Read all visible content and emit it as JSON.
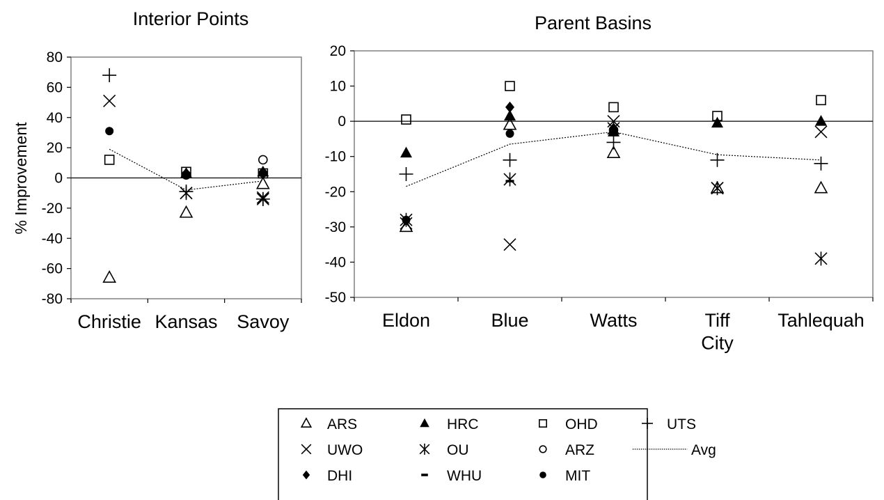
{
  "y_axis_label": "% Improvement",
  "legend": [
    {
      "marker": "open-triangle",
      "label": "ARS"
    },
    {
      "marker": "filled-triangle",
      "label": "HRC"
    },
    {
      "marker": "open-square",
      "label": "OHD"
    },
    {
      "marker": "plus",
      "label": "UTS"
    },
    {
      "marker": "x-cross",
      "label": "UWO"
    },
    {
      "marker": "asterisk",
      "label": "OU"
    },
    {
      "marker": "open-circle",
      "label": "ARZ"
    },
    {
      "marker": "dotted-line",
      "label": "Avg"
    },
    {
      "marker": "filled-diamond",
      "label": "DHI"
    },
    {
      "marker": "dash",
      "label": "WHU"
    },
    {
      "marker": "filled-circle",
      "label": "MIT"
    }
  ],
  "chart_data": [
    {
      "type": "scatter",
      "title": "Interior Points",
      "ylabel": "% Improvement",
      "ylim": [
        -80,
        80
      ],
      "yticks": [
        80,
        60,
        40,
        20,
        0,
        -20,
        -40,
        -60,
        -80
      ],
      "categories": [
        "Christie",
        "Kansas",
        "Savoy"
      ],
      "series": [
        {
          "name": "ARS",
          "marker": "open-triangle",
          "values": [
            -66,
            -23,
            -4
          ]
        },
        {
          "name": "HRC",
          "marker": "filled-triangle",
          "values": [
            null,
            3,
            4
          ]
        },
        {
          "name": "OHD",
          "marker": "open-square",
          "values": [
            12,
            4,
            3
          ]
        },
        {
          "name": "UTS",
          "marker": "plus",
          "values": [
            68,
            -9,
            -14
          ]
        },
        {
          "name": "UWO",
          "marker": "x-cross",
          "values": [
            51,
            -10,
            -13
          ]
        },
        {
          "name": "OU",
          "marker": "asterisk",
          "values": [
            null,
            -10,
            -14
          ]
        },
        {
          "name": "ARZ",
          "marker": "open-circle",
          "values": [
            null,
            2,
            12
          ]
        },
        {
          "name": "DHI",
          "marker": "filled-diamond",
          "values": [
            null,
            3,
            4
          ]
        },
        {
          "name": "MIT",
          "marker": "filled-circle",
          "values": [
            31,
            2,
            3
          ]
        },
        {
          "name": "Avg",
          "marker": "dotted-line",
          "values": [
            19,
            -8,
            -2
          ]
        }
      ]
    },
    {
      "type": "scatter",
      "title": "Parent Basins",
      "ylim": [
        -50,
        20
      ],
      "yticks": [
        20,
        10,
        0,
        -10,
        -20,
        -30,
        -40,
        -50
      ],
      "categories": [
        "Eldon",
        "Blue",
        "Watts",
        "Tiff City",
        "Tahlequah"
      ],
      "series": [
        {
          "name": "ARS",
          "marker": "open-triangle",
          "values": [
            -30,
            -1,
            -9,
            -19,
            -19
          ]
        },
        {
          "name": "HRC",
          "marker": "filled-triangle",
          "values": [
            -9,
            1.5,
            -3,
            -0.5,
            0
          ]
        },
        {
          "name": "OHD",
          "marker": "open-square",
          "values": [
            0.5,
            10,
            4,
            1.5,
            6
          ]
        },
        {
          "name": "UTS",
          "marker": "plus",
          "values": [
            -15,
            -11,
            -6,
            -11,
            -12
          ]
        },
        {
          "name": "UWO",
          "marker": "x-cross",
          "values": [
            -29,
            -35,
            0,
            -19,
            -3
          ]
        },
        {
          "name": "OU",
          "marker": "asterisk",
          "values": [
            -28,
            -16.5,
            -2,
            -19,
            -39
          ]
        },
        {
          "name": "ARZ",
          "marker": "open-circle",
          "values": [
            null,
            null,
            -2.5,
            null,
            null
          ]
        },
        {
          "name": "DHI",
          "marker": "filled-diamond",
          "values": [
            null,
            4,
            -2,
            null,
            null
          ]
        },
        {
          "name": "WHU",
          "marker": "dash",
          "values": [
            null,
            -17,
            null,
            null,
            null
          ]
        },
        {
          "name": "MIT",
          "marker": "filled-circle",
          "values": [
            -28,
            -3.5,
            -3,
            null,
            null
          ]
        },
        {
          "name": "Avg",
          "marker": "dotted-line",
          "values": [
            -18.5,
            -6.5,
            -3,
            -9.5,
            -11
          ]
        }
      ]
    }
  ]
}
